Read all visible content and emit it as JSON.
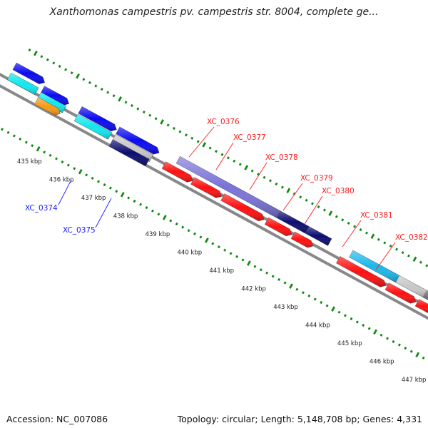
{
  "header": {
    "title": "Xanthomonas campestris pv. campestris str. 8004, complete ge..."
  },
  "footer": {
    "accession": "Accession: NC_007086",
    "summary": "Topology: circular; Length: 5,148,708 bp; Genes: 4,331"
  },
  "ticks": [
    {
      "label": "435 kbp"
    },
    {
      "label": "436 kbp"
    },
    {
      "label": "437 kbp"
    },
    {
      "label": "438 kbp"
    },
    {
      "label": "439 kbp"
    },
    {
      "label": "440 kbp"
    },
    {
      "label": "441 kbp"
    },
    {
      "label": "442 kbp"
    },
    {
      "label": "443 kbp"
    },
    {
      "label": "444 kbp"
    },
    {
      "label": "445 kbp"
    },
    {
      "label": "446 kbp"
    },
    {
      "label": "447 kbp"
    }
  ],
  "gene_labels": [
    {
      "label": "XC_0374",
      "color": "#1a1aff"
    },
    {
      "label": "XC_0375",
      "color": "#1a1aff"
    },
    {
      "label": "XC_0376",
      "color": "#ff1a1a"
    },
    {
      "label": "XC_0377",
      "color": "#ff1a1a"
    },
    {
      "label": "XC_0378",
      "color": "#ff1a1a"
    },
    {
      "label": "XC_0379",
      "color": "#ff1a1a"
    },
    {
      "label": "XC_0380",
      "color": "#ff1a1a"
    },
    {
      "label": "XC_0381",
      "color": "#ff1a1a"
    },
    {
      "label": "XC_0382",
      "color": "#ff1a1a"
    }
  ],
  "colors": {
    "dots": "#138a13",
    "backbone": "#888888",
    "blue": "#0a0af0",
    "cyan": "#11e8ee",
    "red": "#ff1010",
    "orange": "#f59a1a",
    "slate": "#7a72d8",
    "navy": "#0c0c72",
    "sky": "#1ab8ee",
    "lightgray": "#c8c8c8",
    "darkgray": "#707070"
  }
}
